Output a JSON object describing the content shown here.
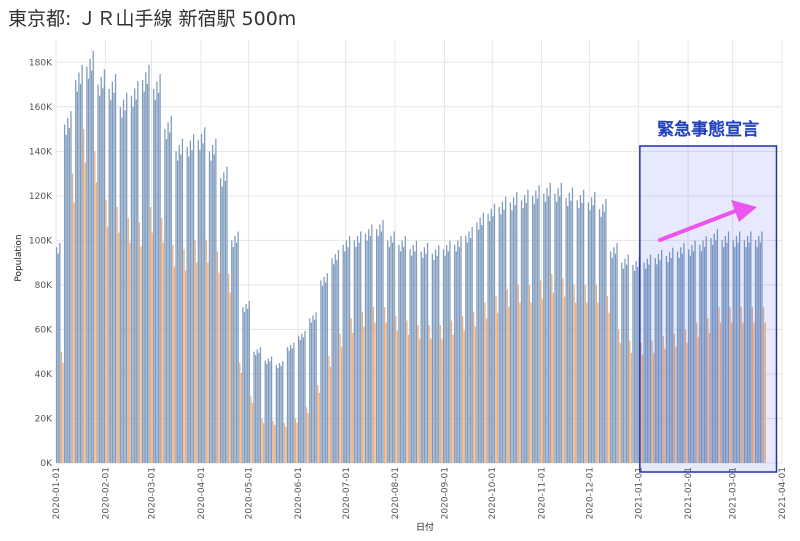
{
  "title": "東京都: ＪＲ山手線 新宿駅 500m",
  "chart_data": {
    "type": "bar",
    "title": "東京都: ＪＲ山手線 新宿駅 500m",
    "xlabel": "日付",
    "ylabel": "Population",
    "x_range": [
      "2020-01-01",
      "2021-04-01"
    ],
    "ylim": [
      0,
      190000
    ],
    "y_ticks": [
      0,
      20000,
      40000,
      60000,
      80000,
      100000,
      120000,
      140000,
      160000,
      180000
    ],
    "y_tick_labels": [
      "0K",
      "20K",
      "40K",
      "60K",
      "80K",
      "100K",
      "120K",
      "140K",
      "160K",
      "180K"
    ],
    "x_ticks": [
      "2020-01-01",
      "2020-02-01",
      "2020-03-01",
      "2020-04-01",
      "2020-05-01",
      "2020-06-01",
      "2020-07-01",
      "2020-08-01",
      "2020-09-01",
      "2020-10-01",
      "2020-11-01",
      "2020-12-01",
      "2021-01-01",
      "2021-02-01",
      "2021-03-01",
      "2021-04-01"
    ],
    "grid": true,
    "colors": {
      "weekday": "#7f9bbd",
      "weekend": "#f0ac78"
    },
    "series": [
      {
        "key": "weekday",
        "values_note": ""
      },
      {
        "key": "weekend",
        "values_note": ""
      }
    ],
    "weekly_levels": {
      "start": "2019-12-30",
      "weekday": [
        95000,
        152000,
        172000,
        178000,
        170000,
        168000,
        160000,
        165000,
        172000,
        168000,
        150000,
        140000,
        142000,
        145000,
        140000,
        128000,
        100000,
        70000,
        50000,
        46000,
        44000,
        52000,
        57000,
        65000,
        82000,
        92000,
        98000,
        100000,
        103000,
        105000,
        100000,
        98000,
        96000,
        95000,
        94000,
        96000,
        98000,
        102000,
        108000,
        112000,
        115000,
        117000,
        118000,
        120000,
        121000,
        121000,
        119000,
        118000,
        117000,
        114000,
        95000,
        90000,
        89000,
        90000,
        92000,
        93000,
        95000,
        96000,
        98000,
        101000,
        100000
      ],
      "weekend": [
        50000,
        130000,
        150000,
        140000,
        118000,
        115000,
        110000,
        108000,
        115000,
        110000,
        98000,
        96000,
        100000,
        100000,
        95000,
        85000,
        45000,
        30000,
        20000,
        19000,
        18000,
        20000,
        25000,
        35000,
        48000,
        58000,
        65000,
        68000,
        70000,
        70000,
        66000,
        64000,
        62000,
        62000,
        62000,
        64000,
        66000,
        68000,
        72000,
        75000,
        78000,
        80000,
        80000,
        82000,
        85000,
        83000,
        80000,
        80000,
        80000,
        75000,
        60000,
        55000,
        54000,
        55000,
        57000,
        58000,
        60000,
        63000,
        65000,
        70000,
        70000
      ]
    },
    "annotations": [
      {
        "text": "緊急事態宣言",
        "span": [
          "2021-01-08",
          "2021-03-21"
        ]
      }
    ]
  }
}
